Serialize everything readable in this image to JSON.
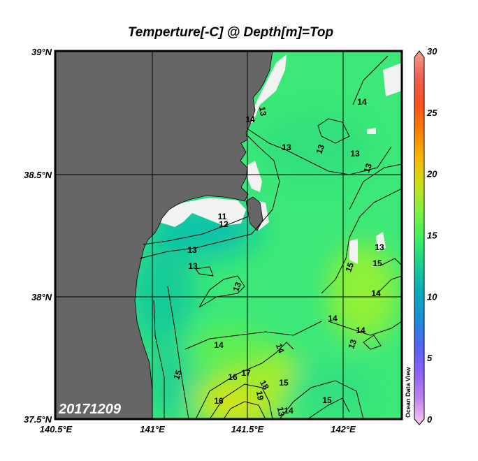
{
  "title": "Temperture[-C] @ Depth[m]=Top",
  "date_stamp": "20171209",
  "watermark": "Ocean Data View",
  "map": {
    "variable": "Temperature",
    "depth": "Top",
    "lat_range": [
      37.5,
      39
    ],
    "lon_range": [
      140.5,
      142.3
    ],
    "x_ticks": [
      "140.5°E",
      "141°E",
      "141.5°E",
      "142°E"
    ],
    "y_ticks": [
      "39°N",
      "38.5°N",
      "38°N",
      "37.5°N"
    ],
    "land_color": "#666666",
    "no_data_color": "#f2f2f2",
    "contour_labels": [
      "13",
      "13",
      "13",
      "13",
      "13",
      "12",
      "11",
      "13",
      "13",
      "13",
      "14",
      "14",
      "15",
      "16",
      "17",
      "18",
      "19",
      "16",
      "13",
      "14",
      "15",
      "14",
      "14",
      "14",
      "15",
      "15",
      "13",
      "14",
      "13",
      "15",
      "14"
    ]
  },
  "colorbar": {
    "ticks": [
      "30",
      "25",
      "20",
      "15",
      "10",
      "5",
      "0"
    ],
    "min": 0,
    "max": 30,
    "colors": [
      "#f8c8f0",
      "#c080f0",
      "#8a60f8",
      "#4e66f0",
      "#1890d8",
      "#0aaab8",
      "#18d090",
      "#40f060",
      "#80f040",
      "#c8e018",
      "#f8b800",
      "#f88000",
      "#f85020",
      "#f06050",
      "#f0a090"
    ]
  }
}
